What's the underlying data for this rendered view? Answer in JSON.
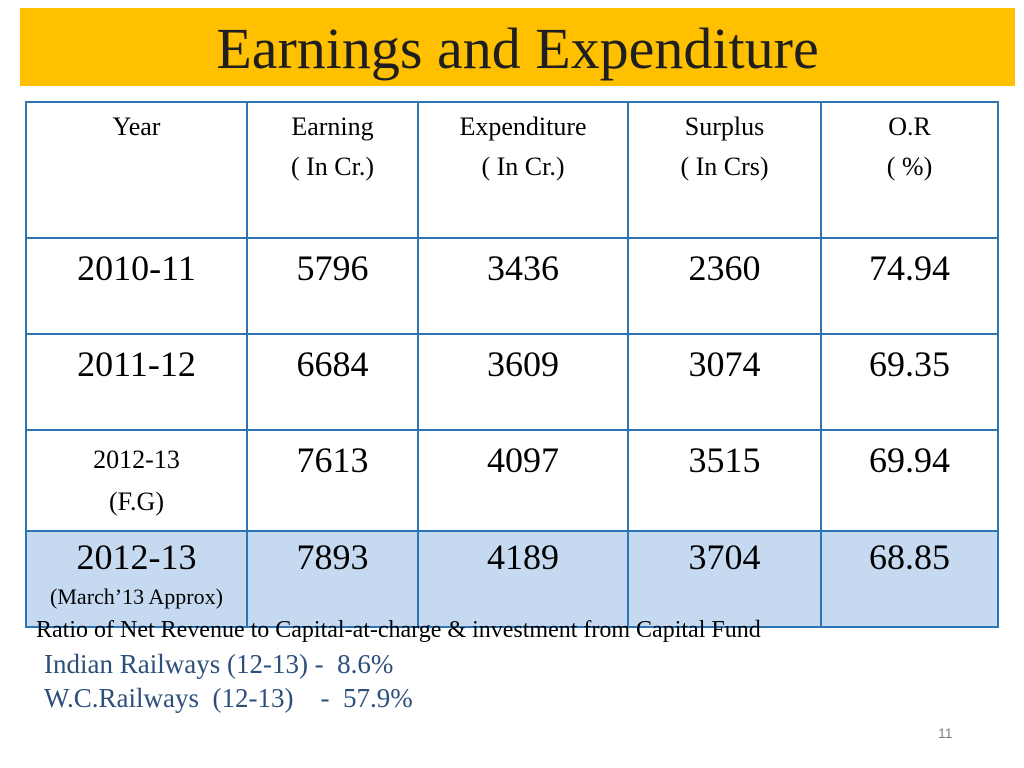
{
  "title": "Earnings and Expenditure",
  "table": {
    "headers": [
      {
        "line1": "Year",
        "line2": ""
      },
      {
        "line1": "Earning",
        "line2": "( In Cr.)"
      },
      {
        "line1": "Expenditure",
        "line2": "( In Cr.)"
      },
      {
        "line1": "Surplus",
        "line2": "( In Crs)"
      },
      {
        "line1": "O.R",
        "line2": "( %)"
      }
    ],
    "rows": [
      {
        "year": "2010-11",
        "year_note": "",
        "earning": "5796",
        "expenditure": "3436",
        "surplus": "2360",
        "or": "74.94"
      },
      {
        "year": "2011-12",
        "year_note": "",
        "earning": "6684",
        "expenditure": "3609",
        "surplus": "3074",
        "or": "69.35"
      },
      {
        "year": "2012-13",
        "year_note": "(F.G)",
        "earning": "7613",
        "expenditure": "4097",
        "surplus": "3515",
        "or": "69.94"
      },
      {
        "year": "2012-13",
        "year_note": "(March’13 Approx)",
        "earning": "7893",
        "expenditure": "4189",
        "surplus": "3704",
        "or": "68.85"
      }
    ]
  },
  "footnote": {
    "heading": "Ratio of Net Revenue to Capital-at-charge & investment from Capital Fund",
    "indian_railways": "Indian Railways (12-13) -  8.6%",
    "wc_railways": "W.C.Railways  (12-13)    -  57.9%"
  },
  "slide_number": "11",
  "colors": {
    "title_bar": "#ffc000",
    "table_border": "#2e75b6",
    "highlight_row": "#c5d9f1",
    "ratio_text": "#2c4f7c"
  }
}
